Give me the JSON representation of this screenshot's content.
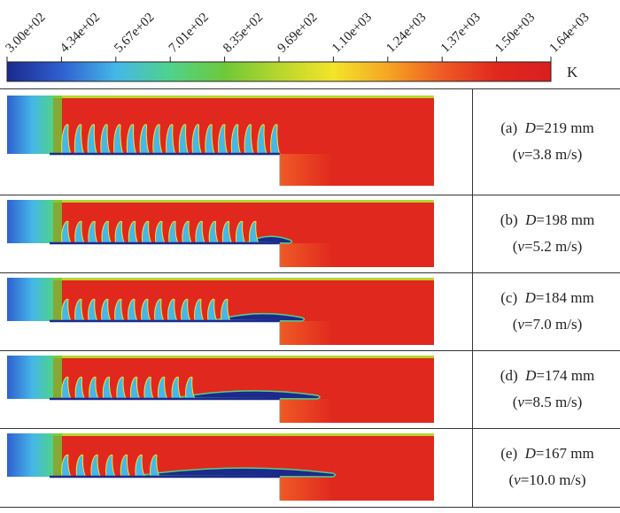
{
  "colorbar": {
    "ticks": [
      "3.00e+02",
      "4.34e+02",
      "5.67e+02",
      "7.01e+02",
      "8.35e+02",
      "9.69e+02",
      "1.10e+03",
      "1.24e+03",
      "1.37e+03",
      "1.50e+03",
      "1.64e+03"
    ],
    "unit": "K",
    "colors": [
      "#1c2a8c",
      "#2f5fd0",
      "#45b7e8",
      "#4fd28a",
      "#6fc83a",
      "#b7d62c",
      "#f3e42a",
      "#f5a623",
      "#ef5a25",
      "#e0281e",
      "#d81f1f"
    ]
  },
  "panels": [
    {
      "id": "a",
      "letter": "(a)",
      "d_var": "D",
      "d_value": "=219 mm",
      "v_open": "(",
      "v_var": "v",
      "v_value": "=3.8 m/s)",
      "cavity_fraction": 0.0
    },
    {
      "id": "b",
      "letter": "(b)",
      "d_var": "D",
      "d_value": "=198 mm",
      "v_open": "(",
      "v_var": "v",
      "v_value": "=5.2 m/s)",
      "cavity_fraction": 0.15
    },
    {
      "id": "c",
      "letter": "(c)",
      "d_var": "D",
      "d_value": "=184 mm",
      "v_open": "(",
      "v_var": "v",
      "v_value": "=7.0 m/s)",
      "cavity_fraction": 0.35
    },
    {
      "id": "d",
      "letter": "(d)",
      "d_var": "D",
      "d_value": "=174 mm",
      "v_open": "(",
      "v_var": "v",
      "v_value": "=8.5 m/s)",
      "cavity_fraction": 0.6
    },
    {
      "id": "e",
      "letter": "(e)",
      "d_var": "D",
      "d_value": "=167 mm",
      "v_open": "(",
      "v_var": "v",
      "v_value": "=10.0 m/s)",
      "cavity_fraction": 0.85
    }
  ]
}
